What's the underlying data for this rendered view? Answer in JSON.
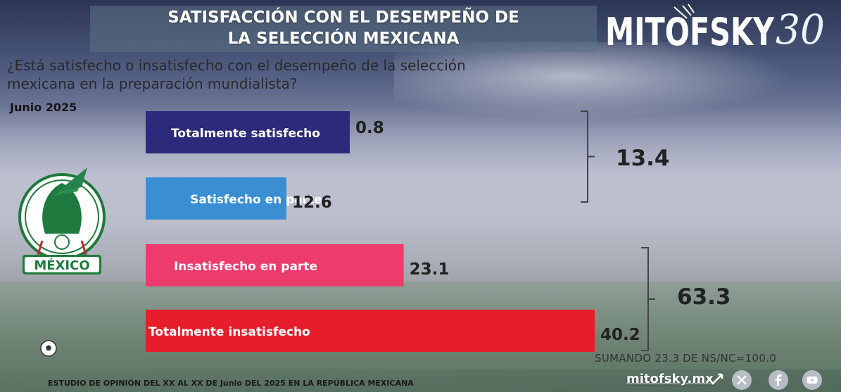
{
  "header": {
    "title_line1": "SATISFACCIÓN CON EL DESEMPEÑO DE",
    "title_line2": "LA SELECCIÓN MEXICANA",
    "question_line1": "¿Está satisfecho o insatisfecho con el desempeño de la selección",
    "question_line2": "mexicana en la preparación mundialista?",
    "date": "Junio 2025"
  },
  "brand": {
    "logo_text": "MITOFSKY",
    "logo_number": "30",
    "crest_label": "MÉXICO"
  },
  "chart_data": {
    "type": "bar",
    "orientation": "horizontal",
    "categories": [
      "Totalmente satisfecho",
      "Satisfecho en parte",
      "Insatisfecho en parte",
      "Totalmente insatisfecho"
    ],
    "values": [
      0.8,
      12.6,
      23.1,
      40.2
    ],
    "value_labels": [
      "0.8",
      "12.6",
      "23.1",
      "40.2"
    ],
    "colors": [
      "#2c2a7a",
      "#3a8fd3",
      "#ee3b6d",
      "#e61e2b"
    ],
    "groups": [
      {
        "label": "13.4",
        "value": 13.4,
        "members": [
          0,
          1
        ]
      },
      {
        "label": "63.3",
        "value": 63.3,
        "members": [
          2,
          3
        ]
      }
    ],
    "xlim": [
      0,
      40.2
    ],
    "grid": false,
    "title": "",
    "xlabel": "",
    "ylabel": ""
  },
  "footer": {
    "study": "ESTUDIO DE OPINIÓN DEL XX AL XX DE Junio DEL 2025 EN LA REPÚBLICA MEXICANA",
    "sum_note": "SUMANDO 23.3 DE NS/NC=100.0",
    "site": "mitofsky.mx",
    "social_icons": [
      "x-icon",
      "facebook-icon",
      "youtube-icon"
    ]
  }
}
